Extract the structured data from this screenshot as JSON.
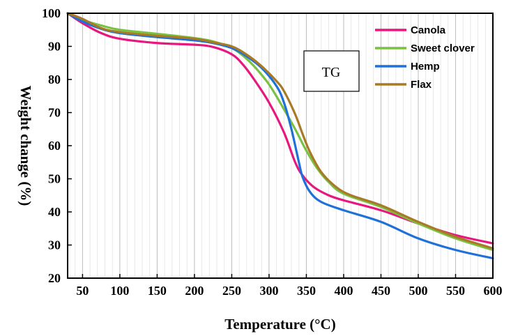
{
  "chart_data": {
    "type": "line",
    "xlabel": "Temperature (°C)",
    "ylabel": "Weight change (%)",
    "xlim": [
      30,
      600
    ],
    "ylim": [
      20,
      100
    ],
    "x_ticks": [
      50,
      100,
      150,
      200,
      250,
      300,
      350,
      400,
      450,
      500,
      550,
      600
    ],
    "y_ticks": [
      20,
      30,
      40,
      50,
      60,
      70,
      80,
      90,
      100
    ],
    "grid": {
      "major_vertical": true,
      "minor_vertical": true,
      "horizontal": false
    },
    "legend": {
      "position": "top-right",
      "entries": [
        "Canola",
        "Sweet clover",
        "Hemp",
        "Flax"
      ]
    },
    "annotation": "TG",
    "series": [
      {
        "name": "Canola",
        "color": "#e8177e",
        "x": [
          30,
          50,
          75,
          100,
          150,
          200,
          225,
          250,
          265,
          280,
          300,
          320,
          335,
          345,
          360,
          380,
          400,
          450,
          500,
          550,
          600
        ],
        "y": [
          100,
          97,
          94,
          92.3,
          91,
          90.5,
          89.8,
          87.6,
          84.5,
          80,
          73,
          64,
          55,
          51,
          47.5,
          45,
          43.5,
          40.5,
          36.5,
          33,
          30.5
        ]
      },
      {
        "name": "Sweet clover",
        "color": "#7ac142",
        "x": [
          30,
          50,
          75,
          100,
          150,
          200,
          225,
          250,
          265,
          280,
          300,
          320,
          335,
          350,
          365,
          380,
          400,
          450,
          500,
          550,
          600
        ],
        "y": [
          100,
          98,
          96.3,
          95,
          93.8,
          92.5,
          91.5,
          89.5,
          87.2,
          84,
          78.5,
          71,
          65,
          58.5,
          53,
          49,
          45.5,
          41.5,
          36.5,
          32,
          28.5
        ]
      },
      {
        "name": "Hemp",
        "color": "#1f70d8",
        "x": [
          30,
          50,
          75,
          100,
          150,
          200,
          225,
          250,
          270,
          290,
          310,
          320,
          330,
          340,
          345,
          355,
          370,
          400,
          450,
          500,
          550,
          600
        ],
        "y": [
          100,
          97.5,
          95.3,
          94,
          92.8,
          91.8,
          91,
          89.5,
          87,
          83.5,
          78,
          73,
          65,
          55,
          50.5,
          46,
          43,
          40.5,
          37,
          32,
          28.5,
          26
        ]
      },
      {
        "name": "Flax",
        "color": "#a87a26",
        "x": [
          30,
          50,
          75,
          100,
          150,
          200,
          225,
          250,
          270,
          290,
          310,
          320,
          335,
          345,
          355,
          370,
          390,
          410,
          450,
          500,
          550,
          600
        ],
        "y": [
          100,
          98.3,
          95.5,
          94.3,
          93.2,
          92.3,
          91.2,
          90,
          87.5,
          84,
          79.5,
          76.5,
          69.5,
          63.5,
          58,
          52,
          47.5,
          45,
          42,
          37,
          32.5,
          29
        ]
      }
    ]
  }
}
